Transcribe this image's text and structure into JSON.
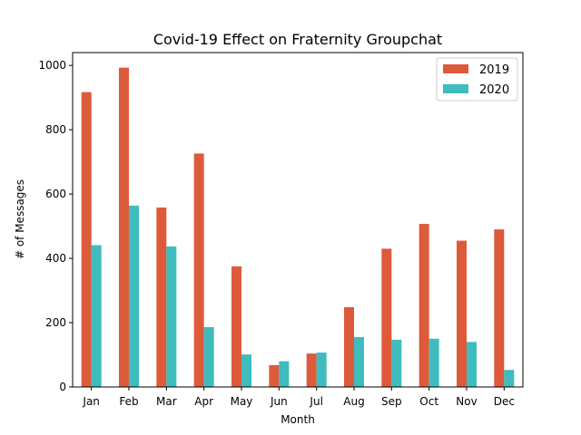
{
  "chart_data": {
    "type": "bar",
    "title": "Covid-19 Effect on Fraternity Groupchat",
    "xlabel": "Month",
    "ylabel": "# of Messages",
    "categories": [
      "Jan",
      "Feb",
      "Mar",
      "Apr",
      "May",
      "Jun",
      "Jul",
      "Aug",
      "Sep",
      "Oct",
      "Nov",
      "Dec"
    ],
    "series": [
      {
        "name": "2019",
        "color": "#dd5a3b",
        "values": [
          917,
          993,
          558,
          726,
          375,
          68,
          104,
          248,
          430,
          507,
          455,
          490
        ]
      },
      {
        "name": "2020",
        "color": "#3fbcbd",
        "values": [
          441,
          564,
          437,
          186,
          101,
          80,
          107,
          155,
          147,
          150,
          140,
          53
        ]
      }
    ],
    "yticks": [
      0,
      200,
      400,
      600,
      800,
      1000
    ],
    "ylim": [
      0,
      1040
    ],
    "grid": false,
    "legend_position": "top-right"
  }
}
